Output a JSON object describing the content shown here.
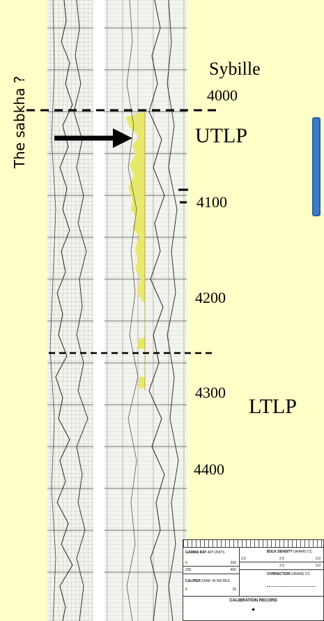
{
  "side_label": "The sabkha ?",
  "formation_label": "Sybille",
  "zones": {
    "upper": "UTLP",
    "lower": "LTLP"
  },
  "depths": [
    "4000",
    "4100",
    "4200",
    "4300",
    "4400"
  ],
  "header_table": {
    "gamma_ray": "GAMMA RAY",
    "gamma_units": "API UNITS",
    "gamma_scale_left": "0",
    "gamma_scale_right": "200",
    "gamma_scale2_left": "200",
    "gamma_scale2_right": "400",
    "bulk_density": "BULK DENSITY",
    "bulk_units": "GRAMS CC",
    "bulk_scale": [
      "2.0",
      "2.5",
      "3.0"
    ],
    "bulk_scale2": [
      "2.5",
      "3.0"
    ],
    "correction": "CORRECTION",
    "correction_units": "GRAMS CC",
    "caliper": "CALIPER",
    "caliper_units": "DIAM. IN INCHES",
    "caliper_scale_left": "6",
    "caliper_scale_right": "16",
    "calibration_record": "CALIBRATION RECORD"
  },
  "colors": {
    "highlight": "#E8E86A",
    "accent_blue": "#3D7CC9",
    "background": "#FFFFC8"
  }
}
